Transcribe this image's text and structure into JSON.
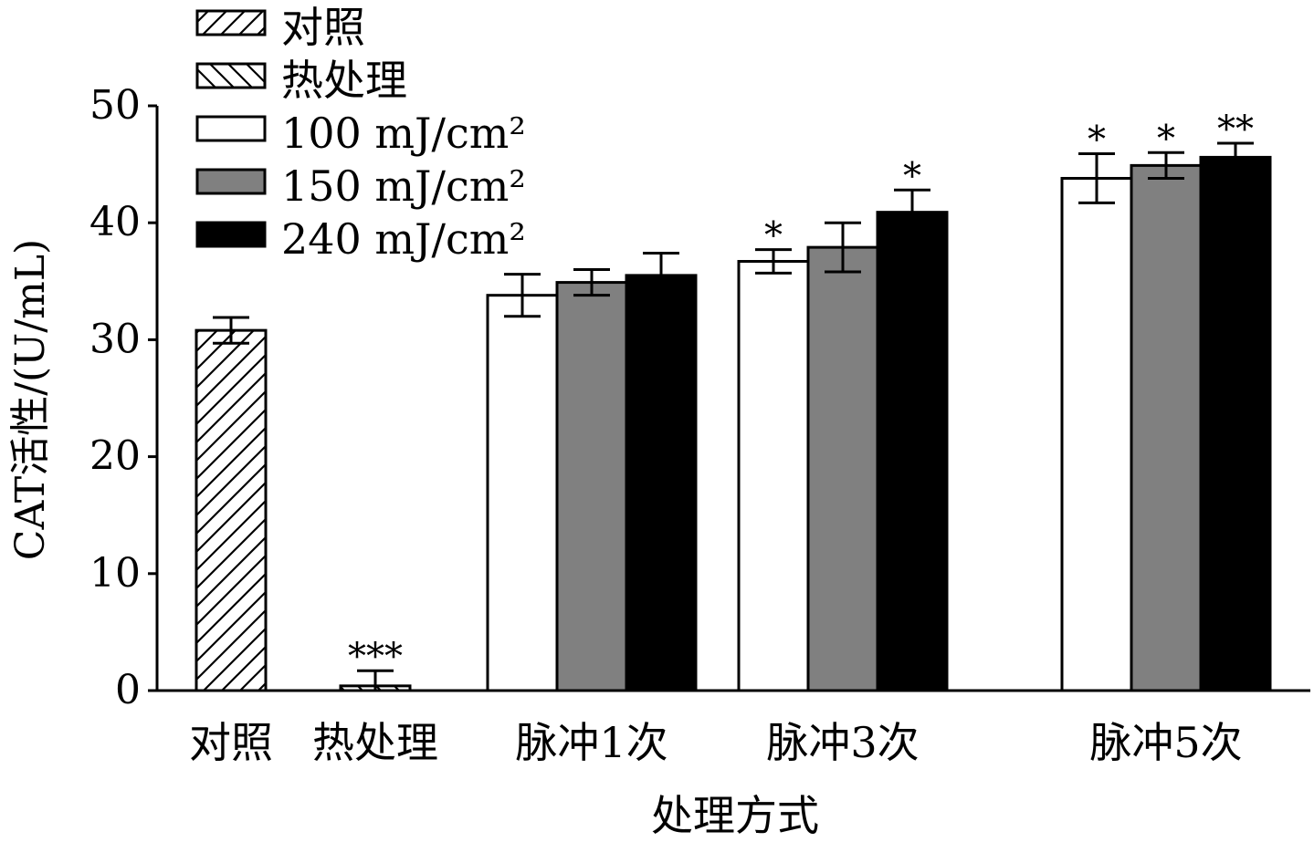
{
  "chart_data": {
    "type": "bar",
    "xlabel": "处理方式",
    "ylabel": "CAT活性/(U/mL)",
    "ylim": [
      0,
      50
    ],
    "yticks": [
      0,
      10,
      20,
      30,
      40,
      50
    ],
    "grid": false,
    "legend_position": "top-left",
    "legend": [
      {
        "key": "control",
        "label": "对照",
        "pattern": "hatch-forward"
      },
      {
        "key": "heat",
        "label": "热处理",
        "pattern": "hatch-backward"
      },
      {
        "key": "d100",
        "label": "100 mJ/cm²",
        "pattern": "solid",
        "color": "#ffffff"
      },
      {
        "key": "d150",
        "label": "150 mJ/cm²",
        "pattern": "solid",
        "color": "#808080"
      },
      {
        "key": "d240",
        "label": "240 mJ/cm²",
        "pattern": "solid",
        "color": "#000000"
      }
    ],
    "groups": [
      {
        "label": "对照",
        "bars": [
          {
            "series": "control",
            "value": 30.8,
            "err": 1.1,
            "sig": ""
          }
        ]
      },
      {
        "label": "热处理",
        "bars": [
          {
            "series": "heat",
            "value": 0.4,
            "err": 1.3,
            "sig": "***"
          }
        ]
      },
      {
        "label": "脉冲1次",
        "bars": [
          {
            "series": "d100",
            "value": 33.8,
            "err": 1.8,
            "sig": ""
          },
          {
            "series": "d150",
            "value": 34.9,
            "err": 1.1,
            "sig": ""
          },
          {
            "series": "d240",
            "value": 35.5,
            "err": 1.9,
            "sig": ""
          }
        ]
      },
      {
        "label": "脉冲3次",
        "bars": [
          {
            "series": "d100",
            "value": 36.7,
            "err": 1.0,
            "sig": "*"
          },
          {
            "series": "d150",
            "value": 37.9,
            "err": 2.1,
            "sig": ""
          },
          {
            "series": "d240",
            "value": 40.9,
            "err": 1.9,
            "sig": "*"
          }
        ]
      },
      {
        "label": "脉冲5次",
        "bars": [
          {
            "series": "d100",
            "value": 43.8,
            "err": 2.1,
            "sig": "*"
          },
          {
            "series": "d150",
            "value": 44.9,
            "err": 1.1,
            "sig": "*"
          },
          {
            "series": "d240",
            "value": 45.6,
            "err": 1.2,
            "sig": "**"
          }
        ]
      }
    ]
  }
}
